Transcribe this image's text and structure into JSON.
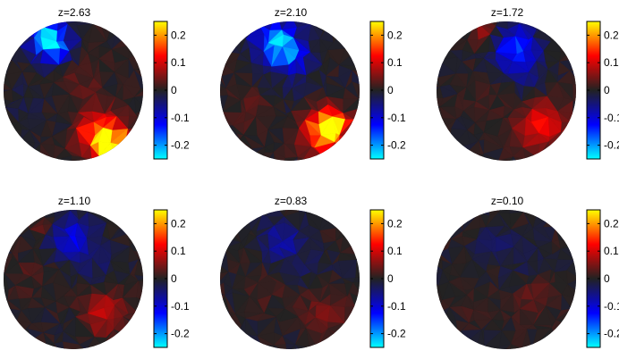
{
  "colormap": [
    "#00ffff",
    "#0000ff",
    "#222222",
    "#ff0000",
    "#ffff00"
  ],
  "chart_data": {
    "type": "heatmap",
    "clim": [
      -0.25,
      0.25
    ],
    "colorbar_ticks": [
      "0.2",
      "0.1",
      "0",
      "-0.1",
      "-0.2"
    ],
    "colorbar_tick_values": [
      0.2,
      0.1,
      0,
      -0.1,
      -0.2
    ],
    "panels": [
      {
        "title": "z=2.63",
        "blobs": [
          {
            "cx": -0.38,
            "cy": 0.78,
            "r": 0.28,
            "v": -0.23
          },
          {
            "cx": -0.2,
            "cy": 0.6,
            "r": 0.2,
            "v": -0.1
          },
          {
            "cx": 0.42,
            "cy": -0.62,
            "r": 0.32,
            "v": 0.2
          },
          {
            "cx": 0.55,
            "cy": -0.82,
            "r": 0.2,
            "v": 0.22
          },
          {
            "cx": 0.1,
            "cy": 0.15,
            "r": 0.35,
            "v": 0.03
          },
          {
            "cx": -0.7,
            "cy": -0.2,
            "r": 0.3,
            "v": -0.02
          }
        ]
      },
      {
        "title": "z=2.10",
        "blobs": [
          {
            "cx": -0.18,
            "cy": 0.72,
            "r": 0.3,
            "v": -0.22
          },
          {
            "cx": 0.05,
            "cy": 0.5,
            "r": 0.22,
            "v": -0.12
          },
          {
            "cx": 0.5,
            "cy": -0.6,
            "r": 0.34,
            "v": 0.17
          },
          {
            "cx": 0.6,
            "cy": -0.5,
            "r": 0.2,
            "v": 0.2
          },
          {
            "cx": -0.5,
            "cy": -0.3,
            "r": 0.3,
            "v": 0.03
          },
          {
            "cx": 0.1,
            "cy": 0.0,
            "r": 0.35,
            "v": -0.02
          }
        ]
      },
      {
        "title": "z=1.72",
        "blobs": [
          {
            "cx": 0.15,
            "cy": 0.62,
            "r": 0.32,
            "v": -0.15
          },
          {
            "cx": -0.3,
            "cy": 0.82,
            "r": 0.18,
            "v": 0.08
          },
          {
            "cx": 0.52,
            "cy": -0.5,
            "r": 0.34,
            "v": 0.12
          },
          {
            "cx": -0.4,
            "cy": -0.2,
            "r": 0.3,
            "v": 0.02
          },
          {
            "cx": 0.3,
            "cy": 0.2,
            "r": 0.3,
            "v": -0.03
          }
        ]
      },
      {
        "title": "z=1.10",
        "blobs": [
          {
            "cx": -0.05,
            "cy": 0.6,
            "r": 0.3,
            "v": -0.12
          },
          {
            "cx": -0.4,
            "cy": 0.75,
            "r": 0.18,
            "v": 0.05
          },
          {
            "cx": 0.45,
            "cy": -0.45,
            "r": 0.3,
            "v": 0.09
          },
          {
            "cx": -0.6,
            "cy": 0.1,
            "r": 0.3,
            "v": 0.02
          },
          {
            "cx": 0.4,
            "cy": 0.2,
            "r": 0.3,
            "v": -0.03
          }
        ]
      },
      {
        "title": "z=0.83",
        "blobs": [
          {
            "cx": -0.1,
            "cy": 0.55,
            "r": 0.3,
            "v": -0.07
          },
          {
            "cx": 0.5,
            "cy": -0.45,
            "r": 0.3,
            "v": 0.05
          },
          {
            "cx": -0.4,
            "cy": -0.1,
            "r": 0.3,
            "v": 0.02
          },
          {
            "cx": 0.3,
            "cy": 0.15,
            "r": 0.3,
            "v": -0.02
          }
        ]
      },
      {
        "title": "z=0.10",
        "blobs": [
          {
            "cx": -0.1,
            "cy": 0.5,
            "r": 0.3,
            "v": -0.03
          },
          {
            "cx": 0.4,
            "cy": -0.3,
            "r": 0.3,
            "v": 0.03
          },
          {
            "cx": -0.4,
            "cy": -0.3,
            "r": 0.3,
            "v": 0.015
          },
          {
            "cx": 0.3,
            "cy": 0.3,
            "r": 0.3,
            "v": -0.015
          }
        ]
      }
    ]
  }
}
